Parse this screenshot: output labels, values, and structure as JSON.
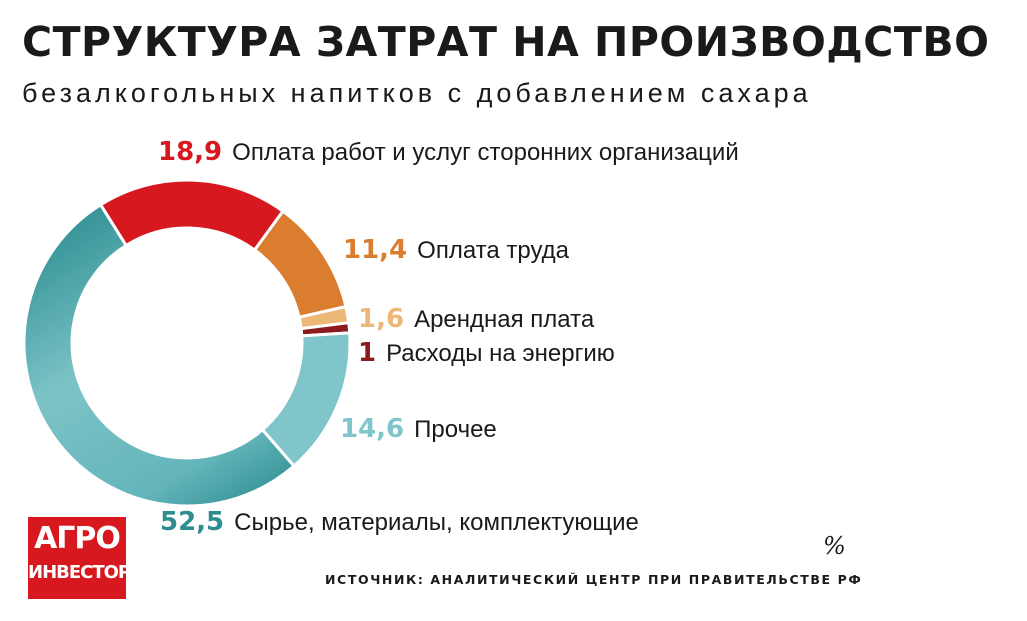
{
  "header": {
    "title": "СТРУКТУРА ЗАТРАТ НА ПРОИЗВОДСТВО",
    "subtitle": "безалкогольных напитков с добавлением сахара"
  },
  "chart_data": {
    "type": "pie",
    "title": "СТРУКТУРА ЗАТРАТ НА ПРОИЗВОДСТВО",
    "subtitle": "безалкогольных напитков с добавлением сахара",
    "unit": "%",
    "slices": [
      {
        "label": "Оплата работ и услуг сторонних организаций",
        "value": 18.9,
        "value_text": "18,9",
        "color": "#d7191f",
        "label_color": "#d7191f"
      },
      {
        "label": "Оплата труда",
        "value": 11.4,
        "value_text": "11,4",
        "color": "#db7d2e",
        "label_color": "#db7d2e"
      },
      {
        "label": "Арендная плата",
        "value": 1.6,
        "value_text": "1,6",
        "color": "#edb877",
        "label_color": "#edb877"
      },
      {
        "label": "Расходы на энергию",
        "value": 1,
        "value_text": "1",
        "color": "#8c1a1e",
        "label_color": "#8c1a1e"
      },
      {
        "label": "Прочее",
        "value": 14.6,
        "value_text": "14,6",
        "color": "#7fc5c9",
        "label_color": "#7fc5c9"
      },
      {
        "label": "Сырье, материалы, комплектующие",
        "value": 52.5,
        "value_text": "52,5",
        "color": "#5bb3b8",
        "color_dark": "#2f8c8f",
        "label_color": "#2f8c8f"
      }
    ]
  },
  "footer": {
    "unit": "%",
    "source": "ИСТОЧНИК: АНАЛИТИЧЕСКИЙ ЦЕНТР ПРИ ПРАВИТЕЛЬСТВЕ РФ",
    "logo_line1": "АГРО",
    "logo_line2": "ИНВЕСТОР"
  }
}
